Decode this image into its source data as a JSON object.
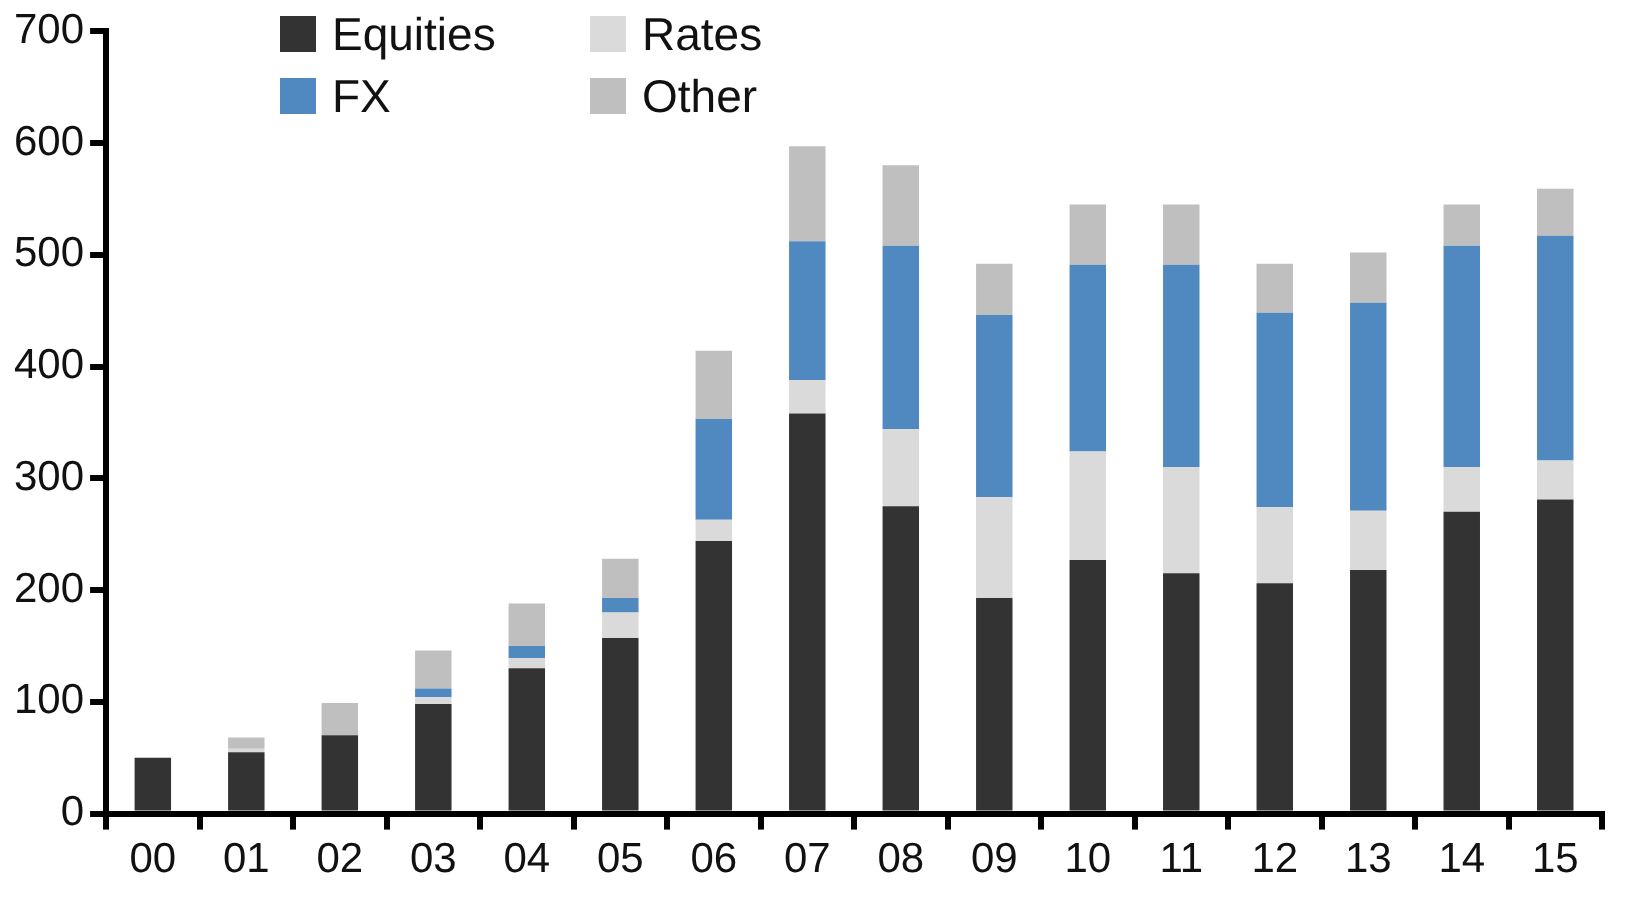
{
  "chart_data": {
    "type": "bar",
    "stacked": true,
    "legend": "top left",
    "grid": false,
    "categories": [
      "00",
      "01",
      "02",
      "03",
      "04",
      "05",
      "06",
      "07",
      "08",
      "09",
      "10",
      "11",
      "12",
      "13",
      "14",
      "15"
    ],
    "series": [
      {
        "name": "Equities",
        "color": "#333333",
        "values": [
          50,
          55,
          70,
          98,
          130,
          157,
          244,
          358,
          275,
          193,
          227,
          215,
          206,
          218,
          270,
          281
        ]
      },
      {
        "name": "Rates",
        "color": "#dadada",
        "values": [
          0,
          3,
          0,
          6,
          9,
          23,
          19,
          30,
          69,
          90,
          97,
          95,
          68,
          53,
          40,
          35
        ]
      },
      {
        "name": "FX",
        "color": "#4f89bf",
        "values": [
          0,
          0,
          0,
          8,
          11,
          13,
          90,
          124,
          164,
          163,
          167,
          181,
          174,
          186,
          198,
          201
        ]
      },
      {
        "name": "Other",
        "color": "#bfbfbf",
        "values": [
          null,
          10,
          29,
          34,
          38,
          35,
          61,
          85,
          72,
          46,
          54,
          54,
          44,
          45,
          37,
          42
        ]
      }
    ],
    "ylim": [
      0,
      700
    ],
    "yticks": [
      0,
      100,
      200,
      300,
      400,
      500,
      600,
      700
    ]
  }
}
